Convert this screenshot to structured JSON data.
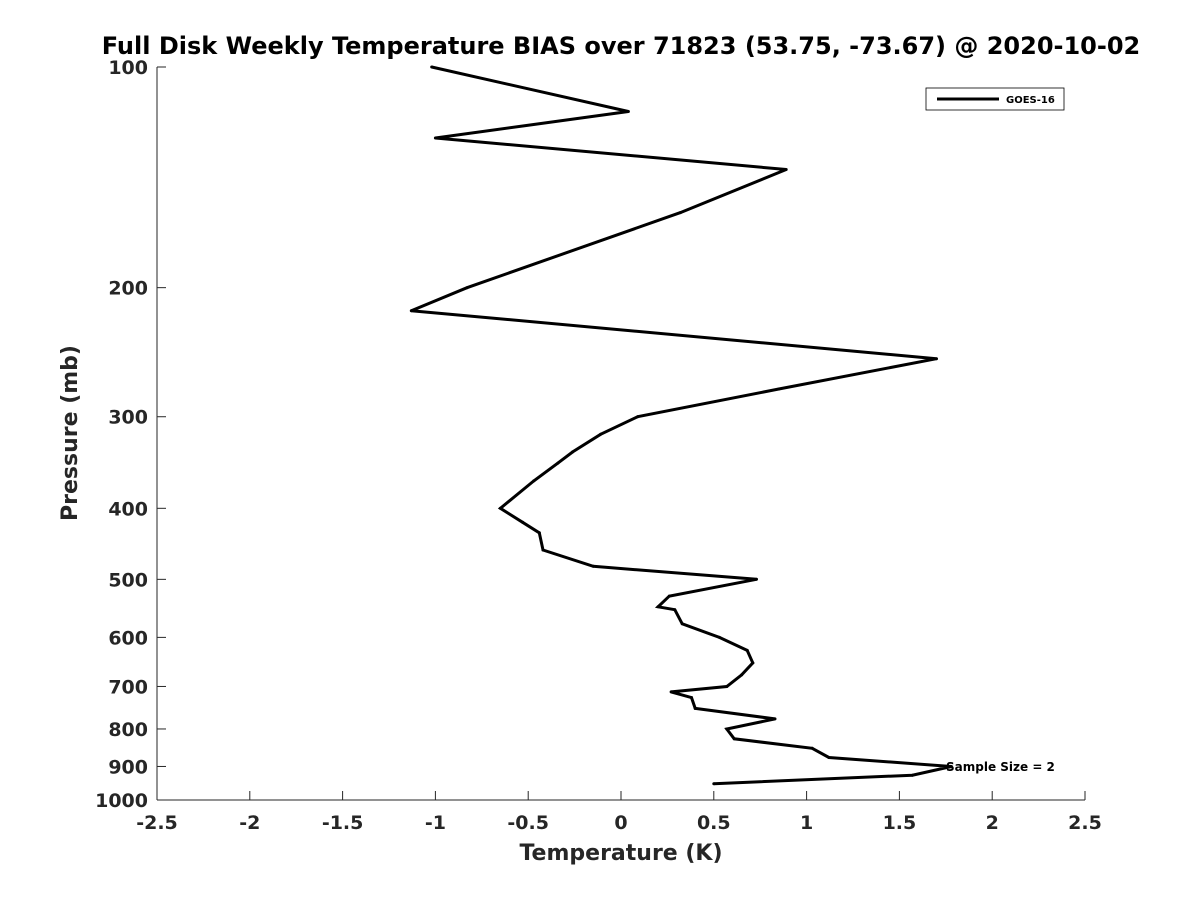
{
  "chart_data": {
    "type": "line",
    "title": "Full Disk Weekly Temperature BIAS over 71823 (53.75, -73.67) @ 2020-10-02",
    "xlabel": "Temperature (K)",
    "ylabel": "Pressure (mb)",
    "xlim": [
      -2.5,
      2.5
    ],
    "ylim": [
      100,
      1000
    ],
    "y_scale": "log",
    "y_reversed": true,
    "x_ticks": [
      "-2.5",
      "-2",
      "-1.5",
      "-1",
      "-0.5",
      "0",
      "0.5",
      "1",
      "1.5",
      "2",
      "2.5"
    ],
    "y_ticks": [
      "100",
      "200",
      "300",
      "400",
      "500",
      "600",
      "700",
      "800",
      "900",
      "1000"
    ],
    "grid": false,
    "legend_position": "top-right",
    "annotation": "Sample Size = 2",
    "series": [
      {
        "name": "GOES-16",
        "color": "#000000",
        "x": [
          -1.02,
          0.04,
          -1.0,
          0.89,
          0.32,
          -0.83,
          -1.13,
          1.7,
          0.85,
          0.09,
          -0.11,
          -0.26,
          -0.34,
          -0.47,
          -0.65,
          -0.53,
          -0.44,
          -0.42,
          -0.15,
          0.73,
          0.26,
          0.2,
          0.29,
          0.33,
          0.53,
          0.68,
          0.71,
          0.65,
          0.57,
          0.27,
          0.38,
          0.4,
          0.83,
          0.57,
          0.61,
          1.03,
          1.12,
          1.78,
          1.57,
          0.5
        ],
        "y": [
          100,
          115,
          125,
          138,
          158,
          200,
          215,
          250,
          275,
          300,
          317,
          335,
          347,
          367,
          400,
          418,
          432,
          456,
          480,
          500,
          527,
          545,
          550,
          575,
          600,
          625,
          650,
          675,
          700,
          712,
          725,
          750,
          775,
          800,
          825,
          850,
          875,
          900,
          925,
          950
        ]
      }
    ]
  }
}
